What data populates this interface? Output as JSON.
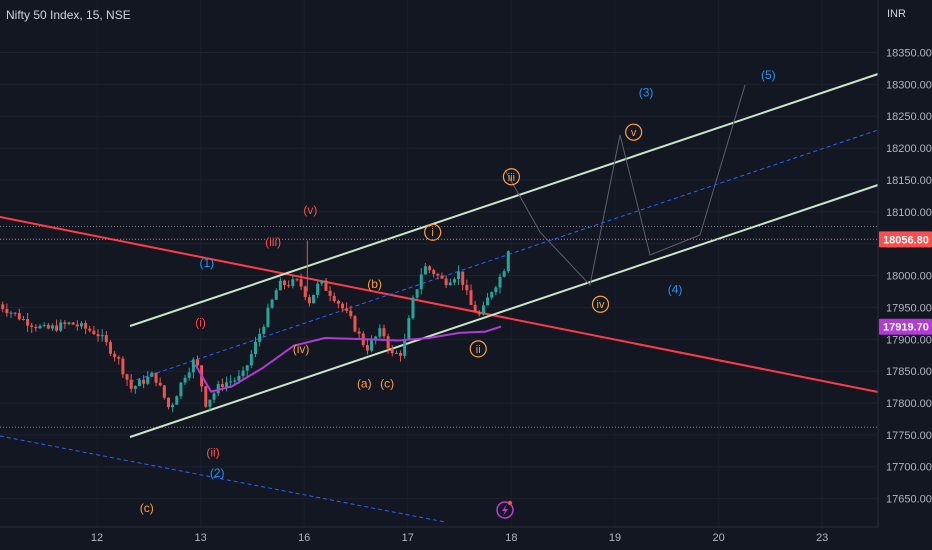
{
  "header": {
    "title": "Nifty 50 Index, 15, NSE",
    "currency": "INR"
  },
  "colors": {
    "background": "#131722",
    "candle_up": "#26a69a",
    "candle_down": "#ef5350",
    "channel": "#c8e6c9",
    "midline": "#2962ff",
    "trendline": "#ff3b47",
    "ma_line": "#b03cd4",
    "wave_orange": "#ff9f43",
    "wave_blue": "#2196f3",
    "wave_red": "#ff4d4d"
  },
  "chart_data": {
    "type": "candlestick",
    "y_ticks": [
      "18350.00",
      "18300.00",
      "18250.00",
      "18200.00",
      "18150.00",
      "18100.00",
      "18050.00",
      "18000.00",
      "17950.00",
      "17900.00",
      "17850.00",
      "17800.00",
      "17750.00",
      "17700.00",
      "17650.00"
    ],
    "ylim": [
      17625,
      18390
    ],
    "x_ticks": [
      "12",
      "13",
      "16",
      "17",
      "18",
      "19",
      "20",
      "23"
    ],
    "price_labels": [
      {
        "value": 18056.8,
        "text": "18056.80",
        "color": "#ff4d4d"
      },
      {
        "value": 17919.7,
        "text": "17919.70",
        "color": "#b03cd4"
      }
    ],
    "wave_labels": [
      {
        "text": "(1)",
        "color": "#2196f3",
        "x": 1.06,
        "y": 18020
      },
      {
        "text": "(2)",
        "color": "#2196f3",
        "x": 1.16,
        "y": 17690
      },
      {
        "text": "(3)",
        "color": "#2196f3",
        "x": 5.3,
        "y": 18287
      },
      {
        "text": "(4)",
        "color": "#2196f3",
        "x": 5.58,
        "y": 17978
      },
      {
        "text": "(5)",
        "color": "#2196f3",
        "x": 6.48,
        "y": 18315
      },
      {
        "text": "(i)",
        "color": "#ff4d4d",
        "x": 1.0,
        "y": 17926
      },
      {
        "text": "(ii)",
        "color": "#ff4d4d",
        "x": 1.12,
        "y": 17722
      },
      {
        "text": "(iii)",
        "color": "#ff4d4d",
        "x": 1.7,
        "y": 18053
      },
      {
        "text": "(iv)",
        "color": "#ff9f43",
        "x": 1.97,
        "y": 17885
      },
      {
        "text": "(v)",
        "color": "#ff4d4d",
        "x": 2.06,
        "y": 18103
      },
      {
        "text": "(a)",
        "color": "#ff9f43",
        "x": 2.58,
        "y": 17831
      },
      {
        "text": "(b)",
        "color": "#ff9f43",
        "x": 2.68,
        "y": 17987
      },
      {
        "text": "(c)",
        "color": "#ff9f43",
        "x": 2.8,
        "y": 17831
      },
      {
        "text": "(c)",
        "color": "#ff9f43",
        "x": 0.48,
        "y": 17635
      }
    ],
    "circled_labels": [
      {
        "text": "i",
        "color": "#ff9f43",
        "x": 3.24,
        "y": 18068
      },
      {
        "text": "ii",
        "color": "#ff9f43",
        "x": 3.68,
        "y": 17885
      },
      {
        "text": "iii",
        "color": "#ff9f43",
        "x": 4.0,
        "y": 18155
      },
      {
        "text": "iv",
        "color": "#ff9f43",
        "x": 4.86,
        "y": 17955
      },
      {
        "text": "v",
        "color": "#ff9f43",
        "x": 5.18,
        "y": 18225
      }
    ]
  }
}
